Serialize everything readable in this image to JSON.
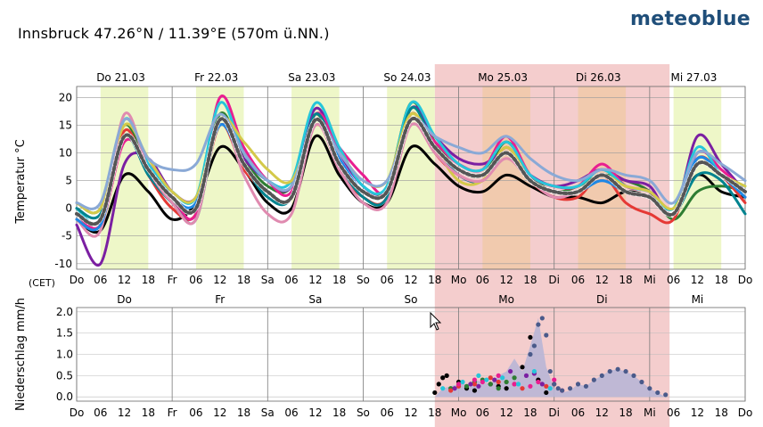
{
  "header": {
    "location": "Innsbruck  47.26°N / 11.39°E (570m ü.NN.)",
    "brand": "meteoblue"
  },
  "colors": {
    "forecast_highlight": "#f4cdcd",
    "daylight_past": "#eef7c8",
    "daylight_forecast": "#f0c9a8",
    "precip_fill": "#b9b6d6",
    "mean": "#555555"
  },
  "chart_data": [
    {
      "type": "line",
      "ylabel": "Temperatur   °C",
      "ylim": [
        -11,
        22
      ],
      "yticks": [
        -10,
        -5,
        0,
        5,
        10,
        15,
        20
      ],
      "x_unit": "hours since Do 21.03 00:00 (CET)",
      "xlim": [
        0,
        168
      ],
      "day_labels": [
        "Do 21.03",
        "Fr 22.03",
        "Sa 23.03",
        "So 24.03",
        "Mo 25.03",
        "Di 26.03",
        "Mi 27.03"
      ],
      "day_abbrev": [
        "Do",
        "Fr",
        "Sa",
        "So",
        "Mo",
        "Di",
        "Mi",
        "Do"
      ],
      "hour_ticks": [
        "06",
        "12",
        "18"
      ],
      "timezone_label": "(CET)",
      "forecast_start_hour": 90,
      "forecast_end_hour": 149,
      "series": [
        {
          "color": "#000000",
          "width": 3,
          "x": [
            0,
            6,
            12,
            18,
            24,
            30,
            36,
            42,
            48,
            54,
            60,
            66,
            72,
            78,
            84,
            90,
            96,
            102,
            108,
            114,
            120,
            126,
            132,
            138,
            144,
            150,
            156,
            162,
            168
          ],
          "y": [
            -2,
            -4,
            6,
            3,
            -2,
            1,
            11,
            7,
            1,
            0,
            13,
            6,
            1,
            1,
            11,
            8,
            4,
            3,
            6,
            4,
            2,
            2,
            1,
            3,
            2,
            -1,
            6,
            3,
            2
          ]
        },
        {
          "color": "#2e7d32",
          "width": 3,
          "x": [
            0,
            6,
            12,
            18,
            24,
            30,
            36,
            42,
            48,
            54,
            60,
            66,
            72,
            78,
            84,
            90,
            96,
            102,
            108,
            114,
            120,
            126,
            132,
            138,
            144,
            150,
            156,
            162,
            168
          ],
          "y": [
            1,
            0,
            15,
            7,
            1,
            -1,
            17,
            9,
            4,
            4,
            17,
            8,
            3,
            4,
            19,
            12,
            7,
            6,
            12,
            6,
            3,
            4,
            6,
            5,
            3,
            -2,
            3,
            4,
            3
          ]
        },
        {
          "color": "#e53935",
          "width": 3,
          "x": [
            0,
            6,
            12,
            18,
            24,
            30,
            36,
            42,
            48,
            54,
            60,
            66,
            72,
            78,
            84,
            90,
            96,
            102,
            108,
            114,
            120,
            126,
            132,
            138,
            144,
            150,
            156,
            162,
            168
          ],
          "y": [
            -1,
            -3,
            14,
            6,
            0,
            -1,
            15,
            7,
            3,
            2,
            16,
            7,
            2,
            2,
            17,
            10,
            6,
            5,
            11,
            5,
            2,
            2,
            6,
            1,
            -1,
            -2,
            9,
            6,
            1
          ]
        },
        {
          "color": "#7b1fa2",
          "width": 3,
          "x": [
            0,
            6,
            12,
            18,
            24,
            30,
            36,
            42,
            48,
            54,
            60,
            66,
            72,
            78,
            84,
            90,
            96,
            102,
            108,
            114,
            120,
            126,
            132,
            138,
            144,
            150,
            156,
            162,
            168
          ],
          "y": [
            -3,
            -10,
            8,
            9,
            3,
            2,
            15,
            9,
            5,
            4,
            18,
            10,
            4,
            3,
            18,
            13,
            9,
            8,
            10,
            6,
            4,
            5,
            7,
            5,
            4,
            -1,
            13,
            8,
            3
          ]
        },
        {
          "color": "#e91e90",
          "width": 3,
          "x": [
            0,
            6,
            12,
            18,
            24,
            30,
            36,
            42,
            48,
            54,
            60,
            66,
            72,
            78,
            84,
            90,
            96,
            102,
            108,
            114,
            120,
            126,
            132,
            138,
            144,
            150,
            156,
            162,
            168
          ],
          "y": [
            -1,
            -3,
            12,
            8,
            2,
            -1,
            20,
            11,
            5,
            3,
            17,
            11,
            6,
            3,
            16,
            12,
            8,
            7,
            13,
            6,
            4,
            4,
            8,
            4,
            3,
            -1,
            10,
            7,
            3
          ]
        },
        {
          "color": "#26c6da",
          "width": 3,
          "x": [
            0,
            6,
            12,
            18,
            24,
            30,
            36,
            42,
            48,
            54,
            60,
            66,
            72,
            78,
            84,
            90,
            96,
            102,
            108,
            114,
            120,
            126,
            132,
            138,
            144,
            150,
            156,
            162,
            168
          ],
          "y": [
            0,
            -2,
            16,
            8,
            3,
            2,
            19,
            10,
            5,
            5,
            19,
            11,
            4,
            4,
            19,
            13,
            8,
            7,
            12,
            6,
            4,
            4,
            7,
            4,
            3,
            0,
            11,
            6,
            4
          ]
        },
        {
          "color": "#00838f",
          "width": 3,
          "x": [
            0,
            6,
            12,
            18,
            24,
            30,
            36,
            42,
            48,
            54,
            60,
            66,
            72,
            78,
            84,
            90,
            96,
            102,
            108,
            114,
            120,
            126,
            132,
            138,
            144,
            150,
            156,
            162,
            168
          ],
          "y": [
            0,
            -1,
            13,
            6,
            1,
            -2,
            16,
            8,
            2,
            2,
            17,
            8,
            2,
            2,
            18,
            11,
            6,
            5,
            10,
            5,
            3,
            3,
            5,
            3,
            2,
            -1,
            6,
            5,
            -1
          ]
        },
        {
          "color": "#d4c94a",
          "width": 3,
          "x": [
            0,
            6,
            12,
            18,
            24,
            30,
            36,
            42,
            48,
            54,
            60,
            66,
            72,
            78,
            84,
            90,
            96,
            102,
            108,
            114,
            120,
            126,
            132,
            138,
            144,
            150,
            156,
            162,
            168
          ],
          "y": [
            1,
            0,
            15,
            9,
            3,
            2,
            16,
            12,
            7,
            5,
            15,
            10,
            5,
            5,
            17,
            11,
            5,
            5,
            11,
            5,
            3,
            3,
            6,
            4,
            3,
            0,
            8,
            6,
            4
          ]
        },
        {
          "color": "#e08bb0",
          "width": 3,
          "x": [
            0,
            6,
            12,
            18,
            24,
            30,
            36,
            42,
            48,
            54,
            60,
            66,
            72,
            78,
            84,
            90,
            96,
            102,
            108,
            114,
            120,
            126,
            132,
            138,
            144,
            150,
            156,
            162,
            168
          ],
          "y": [
            -2,
            -4,
            17,
            7,
            1,
            -2,
            16,
            6,
            -1,
            -1,
            15,
            7,
            1,
            1,
            15,
            10,
            6,
            5,
            9,
            5,
            2,
            3,
            5,
            3,
            2,
            -1,
            9,
            6,
            3
          ]
        },
        {
          "color": "#1e88e5",
          "width": 3,
          "x": [
            0,
            6,
            12,
            18,
            24,
            30,
            36,
            42,
            48,
            54,
            60,
            66,
            72,
            78,
            84,
            90,
            96,
            102,
            108,
            114,
            120,
            126,
            132,
            138,
            144,
            150,
            156,
            162,
            168
          ],
          "y": [
            -2,
            -3,
            13,
            7,
            2,
            1,
            15,
            8,
            3,
            2,
            16,
            9,
            3,
            3,
            16,
            11,
            7,
            6,
            10,
            5,
            3,
            3,
            5,
            3,
            2,
            -1,
            9,
            6,
            2
          ]
        },
        {
          "color": "#8aa9d6",
          "width": 3,
          "x": [
            0,
            6,
            12,
            18,
            24,
            30,
            36,
            42,
            48,
            54,
            60,
            66,
            72,
            78,
            84,
            90,
            96,
            102,
            108,
            114,
            120,
            126,
            132,
            138,
            144,
            150,
            156,
            162,
            168
          ],
          "y": [
            1,
            1,
            16,
            9,
            7,
            8,
            17,
            10,
            5,
            4,
            16,
            10,
            5,
            5,
            16,
            13,
            11,
            10,
            13,
            9,
            6,
            5,
            7,
            6,
            5,
            1,
            10,
            8,
            5
          ]
        },
        {
          "color": "#555555",
          "width": 4,
          "dashed": true,
          "name_hidden": true,
          "x": [
            0,
            6,
            12,
            18,
            24,
            30,
            36,
            42,
            48,
            54,
            60,
            66,
            72,
            78,
            84,
            90,
            96,
            102,
            108,
            114,
            120,
            126,
            132,
            138,
            144,
            150,
            156,
            162,
            168
          ],
          "y": [
            -1,
            -2,
            13,
            7,
            2,
            0,
            16,
            8,
            3,
            2,
            16,
            8,
            3,
            3,
            16,
            11,
            7,
            6,
            10,
            5,
            3,
            3,
            6,
            3,
            2,
            -1,
            8,
            6,
            3
          ]
        }
      ]
    },
    {
      "type": "scatter",
      "ylabel": "Niederschlag   mm/h",
      "ylim": [
        -0.1,
        2.1
      ],
      "yticks": [
        "0.0",
        "0.5",
        "1.0",
        "1.5",
        "2.0"
      ],
      "mean_area": {
        "x": [
          90,
          92,
          94,
          96,
          98,
          100,
          102,
          104,
          106,
          108,
          110,
          112,
          114,
          116,
          118,
          120,
          122,
          124,
          126,
          128,
          130,
          132,
          134,
          136,
          138,
          140,
          142,
          144,
          146,
          148
        ],
        "y": [
          0,
          0.2,
          0.25,
          0.3,
          0.3,
          0.4,
          0.35,
          0.3,
          0.5,
          0.6,
          0.9,
          0.6,
          1.2,
          1.85,
          0.7,
          0.2,
          0.1,
          0.15,
          0.3,
          0.25,
          0.4,
          0.5,
          0.62,
          0.65,
          0.6,
          0.5,
          0.35,
          0.2,
          0.1,
          0
        ]
      },
      "points": [
        {
          "color": "#000000",
          "x": [
            90,
            91,
            92,
            93,
            96,
            98,
            100,
            104,
            106,
            108,
            112,
            114,
            116,
            118
          ],
          "y": [
            0.1,
            0.3,
            0.45,
            0.5,
            0.35,
            0.2,
            0.15,
            0.3,
            0.25,
            0.2,
            0.7,
            1.4,
            0.4,
            0.1
          ]
        },
        {
          "color": "#2e7d32",
          "x": [
            94,
            96,
            98,
            100,
            102,
            104,
            106,
            108,
            110
          ],
          "y": [
            0.2,
            0.3,
            0.25,
            0.35,
            0.4,
            0.3,
            0.2,
            0.35,
            0.45
          ]
        },
        {
          "color": "#e53935",
          "x": [
            94,
            96,
            100,
            104,
            106,
            110,
            112,
            118,
            120
          ],
          "y": [
            0.15,
            0.25,
            0.3,
            0.45,
            0.35,
            0.3,
            0.2,
            0.25,
            0.3
          ]
        },
        {
          "color": "#7b1fa2",
          "x": [
            95,
            99,
            101,
            105,
            109,
            113,
            115,
            117
          ],
          "y": [
            0.2,
            0.3,
            0.25,
            0.4,
            0.6,
            0.5,
            0.55,
            0.3
          ]
        },
        {
          "color": "#e91e90",
          "x": [
            96,
            100,
            102,
            106,
            110,
            114,
            116,
            120,
            122
          ],
          "y": [
            0.3,
            0.4,
            0.35,
            0.5,
            0.3,
            0.25,
            0.35,
            0.4,
            0.15
          ]
        },
        {
          "color": "#26c6da",
          "x": [
            92,
            97,
            101,
            103,
            107,
            111,
            115,
            119
          ],
          "y": [
            0.2,
            0.35,
            0.5,
            0.4,
            0.45,
            0.3,
            0.6,
            0.2
          ]
        },
        {
          "color": "#4a5a8a",
          "x": [
            114,
            115,
            116,
            117,
            118,
            119,
            120,
            121,
            122,
            124,
            126,
            128,
            130,
            132,
            134,
            136,
            138,
            140,
            142,
            144,
            146,
            148
          ],
          "y": [
            1.0,
            1.2,
            1.7,
            1.85,
            1.45,
            0.6,
            0.3,
            0.2,
            0.15,
            0.2,
            0.3,
            0.25,
            0.4,
            0.5,
            0.6,
            0.65,
            0.6,
            0.5,
            0.35,
            0.2,
            0.1,
            0.05
          ]
        }
      ]
    }
  ]
}
